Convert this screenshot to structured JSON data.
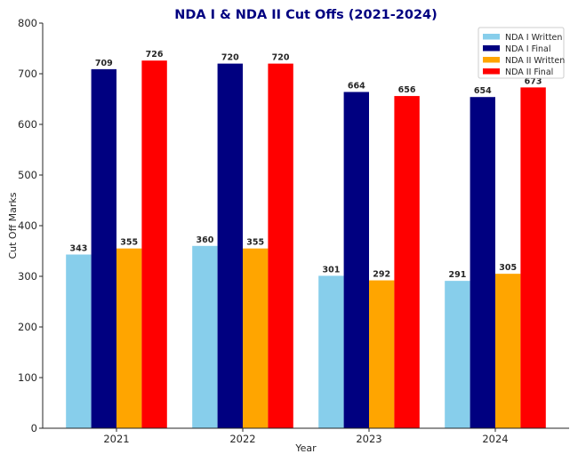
{
  "chart_data": {
    "type": "bar",
    "title": "NDA I & NDA II Cut Offs (2021-2024)",
    "xlabel": "Year",
    "ylabel": "Cut Off Marks",
    "categories": [
      "2021",
      "2022",
      "2023",
      "2024"
    ],
    "ylim": [
      0,
      800
    ],
    "yticks": [
      0,
      100,
      200,
      300,
      400,
      500,
      600,
      700,
      800
    ],
    "grid": false,
    "legend_position": "top-right",
    "series": [
      {
        "name": "NDA I Written",
        "color": "#87CEEB",
        "values": [
          343,
          360,
          301,
          291
        ]
      },
      {
        "name": "NDA I Final",
        "color": "#000080",
        "values": [
          709,
          720,
          664,
          654
        ]
      },
      {
        "name": "NDA II Written",
        "color": "#FFA500",
        "values": [
          355,
          355,
          292,
          305
        ]
      },
      {
        "name": "NDA II Final",
        "color": "#FF0000",
        "values": [
          726,
          720,
          656,
          673
        ]
      }
    ]
  }
}
